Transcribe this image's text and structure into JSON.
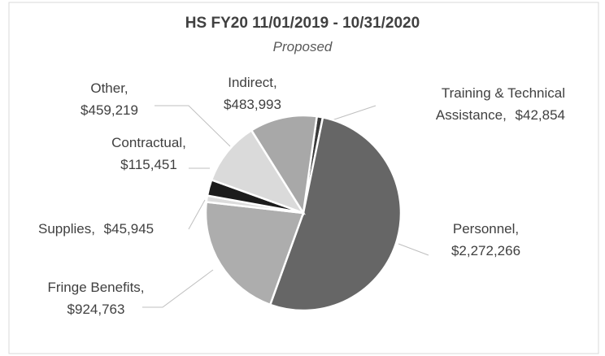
{
  "chart_data": {
    "type": "pie",
    "title": "HS FY20 11/01/2019 - 10/31/2020",
    "subtitle": "Proposed",
    "categories": [
      "Training & Technical Assistance,",
      "Personnel,",
      "Fringe Benefits,",
      "Supplies,",
      "Contractual,",
      "Other,",
      "Indirect,"
    ],
    "values": [
      42854,
      2272266,
      924763,
      45945,
      115451,
      459219,
      483993
    ],
    "value_labels": [
      "$42,854",
      "$2,272,266",
      "$924,763",
      "$45,945",
      "$115,451",
      "$459,219",
      "$483,993"
    ],
    "colors": [
      "#3a3a3a",
      "#666666",
      "#adadad",
      "#dcdcdc",
      "#1c1c1c",
      "#dadada",
      "#a8a8a8"
    ]
  }
}
